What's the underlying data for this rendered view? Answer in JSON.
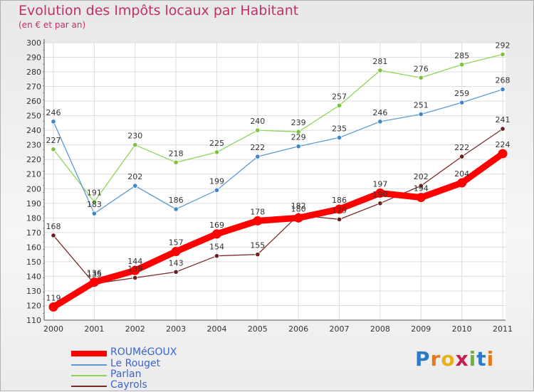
{
  "title": "Evolution des Impôts locaux par Habitant",
  "subtitle": "(en € et par an)",
  "logo_text": "Proxiti",
  "logo_letters": [
    "P",
    "r",
    "o",
    "x",
    "i",
    "t",
    "i"
  ],
  "logo_colors": [
    "#2b7bc8",
    "#e87a1c",
    "#e8b018",
    "#c81e50",
    "#6db33f",
    "#2b7bc8",
    "#e87a1c"
  ],
  "chart_data": {
    "type": "line",
    "title": "Evolution des Impôts locaux par Habitant",
    "subtitle": "(en € et par an)",
    "xlabel": "",
    "ylabel": "",
    "x": [
      "2000",
      "2001",
      "2002",
      "2003",
      "2004",
      "2005",
      "2006",
      "2007",
      "2008",
      "2009",
      "2010",
      "2011"
    ],
    "ylim": [
      110,
      300
    ],
    "yticks": [
      110,
      120,
      130,
      140,
      150,
      160,
      170,
      180,
      190,
      200,
      210,
      220,
      230,
      240,
      250,
      260,
      270,
      280,
      290,
      300
    ],
    "grid": true,
    "legend_position": "bottom-left",
    "series": [
      {
        "name": "ROUMéGOUX",
        "color": "#ff0000",
        "values": [
          119,
          136,
          144,
          157,
          169,
          178,
          180,
          186,
          197,
          194,
          204,
          224
        ],
        "labels": [
          "119",
          "136",
          "144",
          "157",
          "169",
          "178",
          "180",
          "186",
          "197",
          "194",
          "204",
          "224"
        ]
      },
      {
        "name": "Le Rouget",
        "color": "#5b9bd5",
        "values": [
          246,
          183,
          202,
          186,
          199,
          222,
          229,
          235,
          246,
          251,
          259,
          268
        ],
        "labels": [
          "246",
          "183",
          "202",
          "186",
          "199",
          "222",
          "229",
          "235",
          "246",
          "251",
          "259",
          "268"
        ]
      },
      {
        "name": "Parlan",
        "color": "#8fd45a",
        "values": [
          227,
          191,
          230,
          218,
          225,
          240,
          239,
          257,
          281,
          276,
          285,
          292
        ],
        "labels": [
          "227",
          "191",
          "230",
          "218",
          "225",
          "240",
          "239",
          "257",
          "281",
          "276",
          "285",
          "292"
        ]
      },
      {
        "name": "Cayrols",
        "color": "#7b2a2a",
        "values": [
          168,
          135,
          139,
          143,
          154,
          155,
          182,
          179,
          190,
          202,
          222,
          241
        ],
        "labels": [
          "168",
          "135",
          "139",
          "143",
          "154",
          "155",
          "182",
          "179",
          "190",
          "202",
          "222",
          "241"
        ]
      }
    ]
  }
}
